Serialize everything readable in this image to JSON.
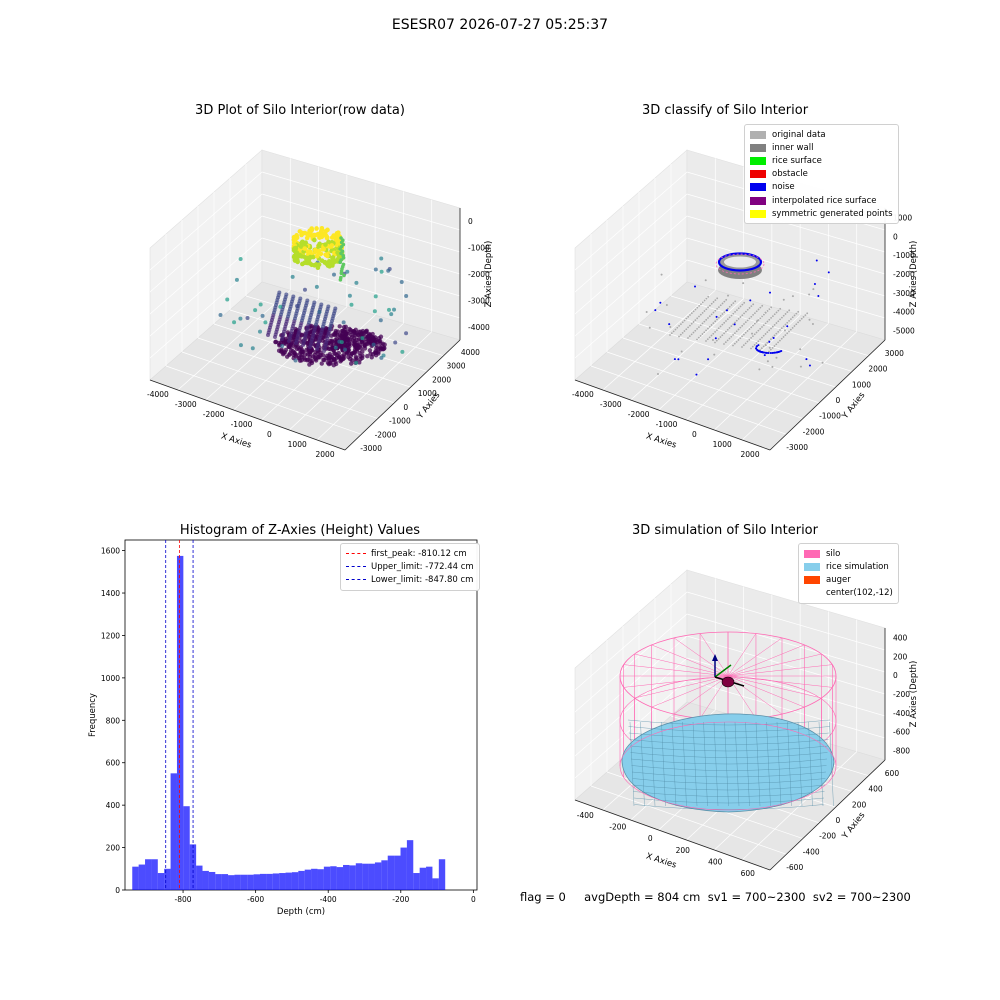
{
  "suptitle": "ESESR07 2026-07-27 05:25:37",
  "bottom_text": "flag = 0     avgDepth = 804 cm  sv1 = 700~2300  sv2 = 700~2300",
  "chart_data": [
    {
      "type": "scatter3d",
      "title": "3D Plot of Silo Interior(row data)",
      "xlabel": "X Axies",
      "ylabel": "Y Axies",
      "zlabel": "Z Axies (Depth)",
      "x_ticks": [
        "-4000",
        "-3000",
        "-2000",
        "-1000",
        "0",
        "1000",
        "2000"
      ],
      "y_ticks": [
        "-3000",
        "-2000",
        "-1000",
        "0",
        "1000",
        "2000",
        "3000",
        "4000"
      ],
      "z_ticks": [
        "0",
        "-1000",
        "-2000",
        "-3000",
        "-4000"
      ],
      "colormap": "viridis"
    },
    {
      "type": "scatter3d",
      "title": "3D classify of Silo Interior",
      "xlabel": "X Axies",
      "ylabel": "Y Axies",
      "zlabel": "Z Axies (Depth)",
      "x_ticks": [
        "-4000",
        "-3000",
        "-2000",
        "-1000",
        "0",
        "1000",
        "2000"
      ],
      "y_ticks": [
        "-3000",
        "-2000",
        "-1000",
        "0",
        "1000",
        "2000",
        "3000"
      ],
      "z_ticks": [
        "1000",
        "0",
        "-1000",
        "-2000",
        "-3000",
        "-4000",
        "-5000"
      ],
      "legend": [
        {
          "label": "original data",
          "color": "#b0b0b0"
        },
        {
          "label": "inner wall",
          "color": "#808080"
        },
        {
          "label": "rice surface",
          "color": "#00ee00"
        },
        {
          "label": "obstacle",
          "color": "#ee0000"
        },
        {
          "label": "noise",
          "color": "#0000ee"
        },
        {
          "label": "interpolated rice surface",
          "color": "#800080"
        },
        {
          "label": "symmetric generated points",
          "color": "#ffff00"
        }
      ]
    },
    {
      "type": "bar",
      "title": "Histogram of Z-Axies (Height) Values",
      "xlabel": "Depth (cm)",
      "ylabel": "Frequency",
      "xlim": [
        -960,
        10
      ],
      "ylim": [
        0,
        1650
      ],
      "x_ticks": [
        -800,
        -600,
        -400,
        -200,
        0
      ],
      "y_ticks": [
        0,
        200,
        400,
        600,
        800,
        1000,
        1200,
        1400,
        1600
      ],
      "bar_color": "#0000ff",
      "bin_width": 17.6,
      "bin_start": -940,
      "values": [
        110,
        120,
        145,
        145,
        80,
        100,
        550,
        1575,
        395,
        215,
        115,
        90,
        85,
        75,
        75,
        70,
        72,
        72,
        72,
        74,
        76,
        76,
        78,
        80,
        82,
        84,
        90,
        96,
        100,
        98,
        110,
        112,
        108,
        118,
        116,
        126,
        124,
        124,
        130,
        140,
        162,
        162,
        200,
        235,
        80,
        105,
        110,
        55,
        145
      ],
      "vlines": [
        {
          "label": "first_peak: -810.12 cm",
          "x": -810.12,
          "color": "#ff0000"
        },
        {
          "label": "Upper_limit: -772.44 cm",
          "x": -772.44,
          "color": "#0000cc"
        },
        {
          "label": "Lower_limit: -847.80 cm",
          "x": -847.8,
          "color": "#0000cc"
        }
      ]
    },
    {
      "type": "surface3d",
      "title": "3D simulation of Silo Interior",
      "xlabel": "X Axies",
      "ylabel": "Y Axies",
      "zlabel": "Z Axies (Depth)",
      "x_ticks": [
        "-400",
        "-200",
        "0",
        "200",
        "400",
        "600"
      ],
      "y_ticks": [
        "-600",
        "-400",
        "-200",
        "0",
        "200",
        "400",
        "600"
      ],
      "z_ticks": [
        "400",
        "200",
        "0",
        "-200",
        "-400",
        "-600",
        "-800"
      ],
      "legend": [
        {
          "label": "silo",
          "color": "#ff69b4"
        },
        {
          "label": "rice simulation",
          "color": "#87ceeb"
        },
        {
          "label": "auger",
          "color": "#ff4500"
        },
        {
          "label": "center(102,-12)",
          "color": ""
        }
      ]
    }
  ]
}
